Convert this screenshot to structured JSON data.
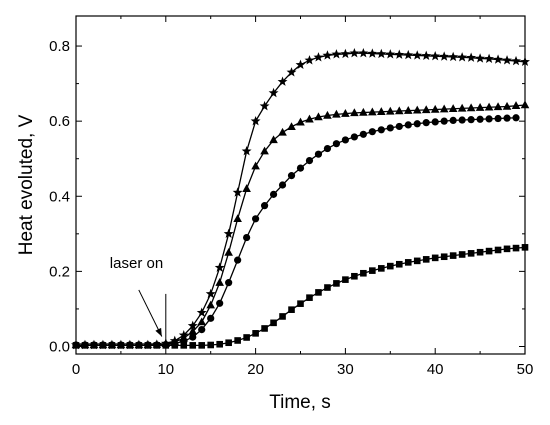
{
  "chart_data": {
    "type": "line",
    "xlabel": "Time, s",
    "ylabel": "Heat evoluted, V",
    "xlim": [
      0,
      50
    ],
    "ylim": [
      -0.02,
      0.88
    ],
    "xticks": [
      0,
      10,
      20,
      30,
      40,
      50
    ],
    "yticks": [
      0.0,
      0.2,
      0.4,
      0.6,
      0.8
    ],
    "xtick_labels": [
      "0",
      "10",
      "20",
      "30",
      "40",
      "50"
    ],
    "ytick_labels": [
      "0.0",
      "0.2",
      "0.4",
      "0.6",
      "0.8"
    ],
    "grid": false,
    "annotation": {
      "text": "laser on",
      "x": 10,
      "line_top_y": 0.14
    },
    "series": [
      {
        "marker": "star",
        "color": "#000000",
        "x": [
          0,
          1,
          2,
          3,
          4,
          5,
          6,
          7,
          8,
          9,
          10,
          11,
          12,
          13,
          14,
          15,
          16,
          17,
          18,
          19,
          20,
          21,
          22,
          23,
          24,
          25,
          26,
          27,
          28,
          29,
          30,
          31,
          32,
          33,
          34,
          35,
          36,
          37,
          38,
          39,
          40,
          41,
          42,
          43,
          44,
          45,
          46,
          47,
          48,
          49,
          50
        ],
        "y": [
          0.004,
          0.004,
          0.004,
          0.004,
          0.004,
          0.004,
          0.004,
          0.004,
          0.004,
          0.005,
          0.008,
          0.015,
          0.03,
          0.055,
          0.09,
          0.14,
          0.21,
          0.3,
          0.41,
          0.52,
          0.6,
          0.64,
          0.675,
          0.705,
          0.73,
          0.75,
          0.762,
          0.77,
          0.775,
          0.778,
          0.779,
          0.781,
          0.781,
          0.78,
          0.779,
          0.778,
          0.777,
          0.776,
          0.775,
          0.774,
          0.773,
          0.772,
          0.771,
          0.77,
          0.769,
          0.767,
          0.766,
          0.764,
          0.762,
          0.76,
          0.758
        ]
      },
      {
        "marker": "triangle",
        "color": "#000000",
        "x": [
          0,
          1,
          2,
          3,
          4,
          5,
          6,
          7,
          8,
          9,
          10,
          11,
          12,
          13,
          14,
          15,
          16,
          17,
          18,
          19,
          20,
          21,
          22,
          23,
          24,
          25,
          26,
          27,
          28,
          29,
          30,
          31,
          32,
          33,
          34,
          35,
          36,
          37,
          38,
          39,
          40,
          41,
          42,
          43,
          44,
          45,
          46,
          47,
          48,
          49,
          50
        ],
        "y": [
          0.004,
          0.004,
          0.004,
          0.004,
          0.004,
          0.004,
          0.004,
          0.004,
          0.004,
          0.005,
          0.007,
          0.012,
          0.022,
          0.04,
          0.065,
          0.11,
          0.17,
          0.25,
          0.34,
          0.42,
          0.48,
          0.52,
          0.55,
          0.57,
          0.585,
          0.597,
          0.605,
          0.611,
          0.615,
          0.618,
          0.62,
          0.622,
          0.623,
          0.624,
          0.625,
          0.626,
          0.627,
          0.628,
          0.629,
          0.63,
          0.631,
          0.632,
          0.633,
          0.634,
          0.635,
          0.636,
          0.637,
          0.638,
          0.639,
          0.641,
          0.643
        ]
      },
      {
        "marker": "circle",
        "color": "#000000",
        "x": [
          0,
          1,
          2,
          3,
          4,
          5,
          6,
          7,
          8,
          9,
          10,
          11,
          12,
          13,
          14,
          15,
          16,
          17,
          18,
          19,
          20,
          21,
          22,
          23,
          24,
          25,
          26,
          27,
          28,
          29,
          30,
          31,
          32,
          33,
          34,
          35,
          36,
          37,
          38,
          39,
          40,
          41,
          42,
          43,
          44,
          45,
          46,
          47,
          48,
          49
        ],
        "y": [
          0.004,
          0.004,
          0.004,
          0.004,
          0.004,
          0.004,
          0.004,
          0.004,
          0.004,
          0.004,
          0.005,
          0.008,
          0.014,
          0.025,
          0.045,
          0.075,
          0.115,
          0.17,
          0.23,
          0.29,
          0.34,
          0.375,
          0.405,
          0.43,
          0.455,
          0.475,
          0.495,
          0.512,
          0.527,
          0.54,
          0.55,
          0.558,
          0.565,
          0.572,
          0.577,
          0.582,
          0.586,
          0.59,
          0.593,
          0.596,
          0.598,
          0.6,
          0.602,
          0.603,
          0.604,
          0.605,
          0.606,
          0.607,
          0.608,
          0.609
        ]
      },
      {
        "marker": "square",
        "color": "#000000",
        "x": [
          0,
          1,
          2,
          3,
          4,
          5,
          6,
          7,
          8,
          9,
          10,
          11,
          12,
          13,
          14,
          15,
          16,
          17,
          18,
          19,
          20,
          21,
          22,
          23,
          24,
          25,
          26,
          27,
          28,
          29,
          30,
          31,
          32,
          33,
          34,
          35,
          36,
          37,
          38,
          39,
          40,
          41,
          42,
          43,
          44,
          45,
          46,
          47,
          48,
          49,
          50
        ],
        "y": [
          0.003,
          0.003,
          0.003,
          0.003,
          0.003,
          0.003,
          0.003,
          0.003,
          0.003,
          0.003,
          0.003,
          0.003,
          0.003,
          0.003,
          0.003,
          0.004,
          0.006,
          0.01,
          0.016,
          0.024,
          0.035,
          0.048,
          0.063,
          0.08,
          0.098,
          0.114,
          0.13,
          0.144,
          0.157,
          0.168,
          0.178,
          0.187,
          0.195,
          0.202,
          0.208,
          0.214,
          0.219,
          0.224,
          0.228,
          0.232,
          0.236,
          0.239,
          0.242,
          0.245,
          0.248,
          0.251,
          0.254,
          0.257,
          0.26,
          0.262,
          0.264
        ]
      }
    ]
  }
}
